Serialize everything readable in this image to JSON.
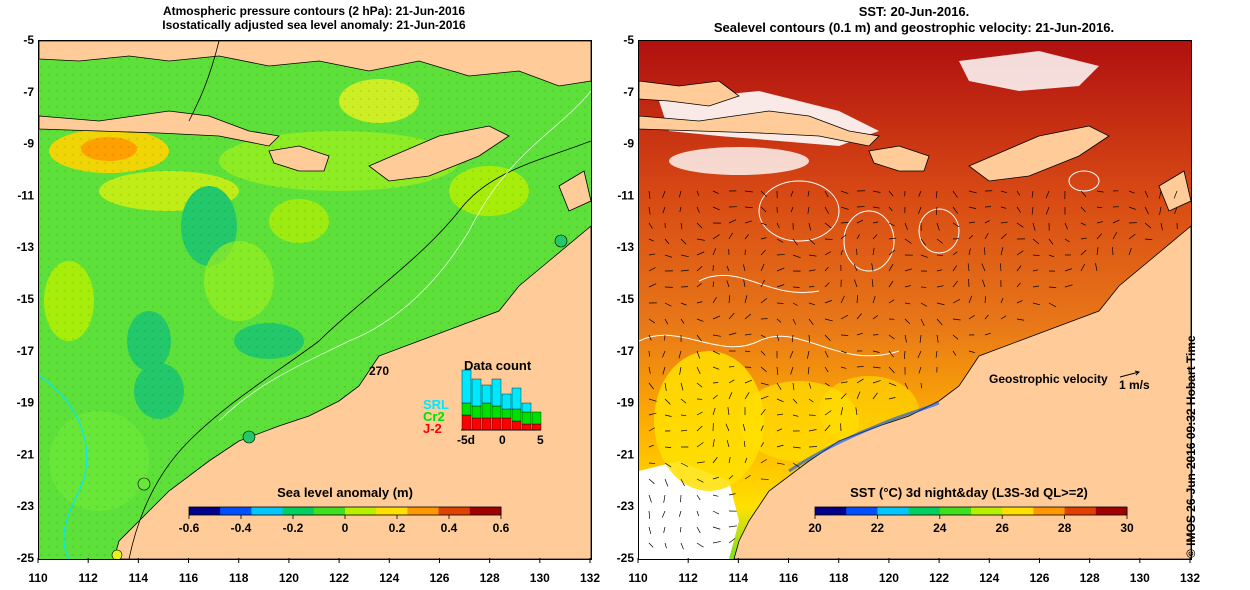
{
  "left_panel": {
    "title_line1": "Atmospheric pressure contours (2 hPa): 21-Jun-2016",
    "title_line2": "Isostatically adjusted sea level anomaly: 21-Jun-2016",
    "colorbar_title": "Sea level anomaly (m)",
    "colorbar_ticks": [
      "-0.6",
      "-0.4",
      "-0.2",
      "0",
      "0.2",
      "0.4",
      "0.6"
    ],
    "colorbar_colors": [
      "#00008b",
      "#0050ff",
      "#00c8ff",
      "#00d060",
      "#40e020",
      "#b8f000",
      "#ffe000",
      "#ff9800",
      "#e04000",
      "#a00000"
    ],
    "data_count": {
      "title": "Data count",
      "ymax_label": "270",
      "legend": [
        "SRL",
        "Cr2",
        "J-2"
      ],
      "legend_colors": [
        "#00e8ff",
        "#00e000",
        "#ff0000"
      ],
      "xticks": [
        "-5d",
        "0",
        "5"
      ],
      "bars": [
        {
          "j2": 0.25,
          "cr2": 0.2,
          "srl": 0.55
        },
        {
          "j2": 0.2,
          "cr2": 0.2,
          "srl": 0.45
        },
        {
          "j2": 0.2,
          "cr2": 0.25,
          "srl": 0.3
        },
        {
          "j2": 0.2,
          "cr2": 0.2,
          "srl": 0.45
        },
        {
          "j2": 0.2,
          "cr2": 0.15,
          "srl": 0.25
        },
        {
          "j2": 0.15,
          "cr2": 0.2,
          "srl": 0.35
        },
        {
          "j2": 0.1,
          "cr2": 0.2,
          "srl": 0.15
        },
        {
          "j2": 0.1,
          "cr2": 0.2,
          "srl": 0.0
        }
      ]
    }
  },
  "right_panel": {
    "title_line1": "SST: 20-Jun-2016.",
    "title_line2": "Sealevel contours (0.1 m) and geostrophic velocity: 21-Jun-2016.",
    "colorbar_title": "SST (°C) 3d night&day (L3S-3d QL>=2)",
    "colorbar_ticks": [
      "20",
      "22",
      "24",
      "26",
      "28",
      "30"
    ],
    "colorbar_colors": [
      "#00008b",
      "#0050ff",
      "#00c8ff",
      "#00d060",
      "#40e020",
      "#b8f000",
      "#ffe000",
      "#ff9800",
      "#e04000",
      "#a00000"
    ],
    "velocity_label": "Geostrophic velocity",
    "velocity_scale": "1 m/s"
  },
  "axes": {
    "x_ticks": [
      "110",
      "112",
      "114",
      "116",
      "118",
      "120",
      "122",
      "124",
      "126",
      "128",
      "130",
      "132"
    ],
    "y_ticks": [
      "-5",
      "-7",
      "-9",
      "-11",
      "-13",
      "-15",
      "-17",
      "-19",
      "-21",
      "-23",
      "-25"
    ]
  },
  "credit": "© IMOS 26-Jun-2016 09:32 Hobart Time",
  "colors": {
    "land": "#ffcc99",
    "ocean_green": "#5ee03a",
    "ocean_light": "#8cef2a",
    "sst_warm": "#e06018",
    "sst_hot": "#b01010",
    "sst_mid": "#ffb000"
  }
}
